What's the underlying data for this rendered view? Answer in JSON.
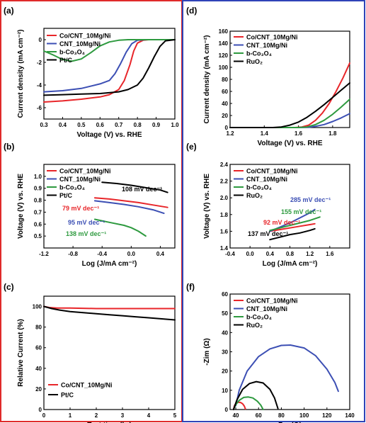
{
  "colors": {
    "red": "#e8262a",
    "blue": "#3c4fb4",
    "green": "#2e9a3f",
    "black": "#000000",
    "left_border": "#e02a2a",
    "right_border": "#2f43b8"
  },
  "chart_data": [
    {
      "id": "a",
      "label": "(a)",
      "type": "line",
      "xlabel": "Voltage (V) vs. RHE",
      "ylabel": "Current density (mA cm⁻²)",
      "xlim": [
        0.3,
        1.0
      ],
      "ylim": [
        -7,
        1
      ],
      "xticks": [
        "0.3",
        "0.4",
        "0.5",
        "0.6",
        "0.7",
        "0.8",
        "0.9",
        "1.0"
      ],
      "yticks": [
        "-6",
        "-4",
        "-2",
        "0"
      ],
      "legend": [
        "Co/CNT_10Mg/Ni",
        "CNT_10Mg/Ni",
        "b-Co₃O₄",
        "Pt/C"
      ],
      "legend_position": "top-left",
      "series": [
        {
          "name": "Co/CNT_10Mg/Ni",
          "color": "red",
          "x": [
            0.3,
            0.4,
            0.5,
            0.6,
            0.65,
            0.7,
            0.73,
            0.76,
            0.78,
            0.8,
            0.83,
            0.86,
            0.9,
            1.0
          ],
          "y": [
            -5.5,
            -5.4,
            -5.25,
            -5.05,
            -4.85,
            -4.4,
            -3.6,
            -2.2,
            -1.0,
            -0.3,
            -0.05,
            0,
            0,
            0
          ]
        },
        {
          "name": "CNT_10Mg/Ni",
          "color": "blue",
          "x": [
            0.3,
            0.4,
            0.5,
            0.6,
            0.65,
            0.68,
            0.71,
            0.74,
            0.77,
            0.8,
            0.85,
            0.9,
            1.0
          ],
          "y": [
            -4.6,
            -4.5,
            -4.3,
            -3.9,
            -3.6,
            -3.0,
            -2.1,
            -1.1,
            -0.35,
            -0.05,
            0,
            0,
            0
          ]
        },
        {
          "name": "b-Co₃O₄",
          "color": "green",
          "x": [
            0.3,
            0.35,
            0.4,
            0.45,
            0.5,
            0.55,
            0.6,
            0.65,
            0.7,
            0.75,
            0.8,
            0.9,
            1.0
          ],
          "y": [
            -1.0,
            -1.35,
            -1.75,
            -1.9,
            -1.7,
            -1.15,
            -0.55,
            -0.2,
            -0.05,
            0,
            0,
            0,
            0
          ]
        },
        {
          "name": "Pt/C",
          "color": "black",
          "x": [
            0.3,
            0.4,
            0.5,
            0.6,
            0.7,
            0.75,
            0.8,
            0.83,
            0.86,
            0.89,
            0.92,
            0.95,
            1.0
          ],
          "y": [
            -4.9,
            -4.85,
            -4.8,
            -4.75,
            -4.6,
            -4.4,
            -4.0,
            -3.4,
            -2.5,
            -1.5,
            -0.6,
            -0.1,
            0
          ]
        }
      ]
    },
    {
      "id": "b",
      "label": "(b)",
      "type": "line",
      "xlabel": "Log (J/mA cm⁻²)",
      "ylabel": "Voltage (V) vs. RHE",
      "xlim": [
        -1.2,
        0.6
      ],
      "ylim": [
        0.4,
        1.1
      ],
      "xticks": [
        "-1.2",
        "-0.8",
        "-0.4",
        "0.0",
        "0.4"
      ],
      "yticks": [
        "0.5",
        "0.6",
        "0.7",
        "0.8",
        "0.9",
        "1.0"
      ],
      "legend": [
        "Co/CNT_10Mg/Ni",
        "CNT_10Mg/Ni",
        "b-Co₃O₄",
        "Pt/C"
      ],
      "legend_position": "top-left",
      "annotations": [
        "108 mV dec⁻¹",
        "79 mV dec⁻¹",
        "95 mV dec⁻¹",
        "138 mV dec⁻¹"
      ],
      "series": [
        {
          "name": "Co/CNT_10Mg/Ni",
          "color": "red",
          "x": [
            -0.5,
            -0.3,
            -0.1,
            0.1,
            0.3,
            0.5
          ],
          "y": [
            0.82,
            0.81,
            0.795,
            0.78,
            0.76,
            0.74
          ]
        },
        {
          "name": "CNT_10Mg/Ni",
          "color": "blue",
          "x": [
            -0.5,
            -0.3,
            -0.1,
            0.1,
            0.3,
            0.45
          ],
          "y": [
            0.795,
            0.78,
            0.765,
            0.745,
            0.72,
            0.69
          ]
        },
        {
          "name": "b-Co₃O₄",
          "color": "green",
          "x": [
            -0.5,
            -0.3,
            -0.1,
            0.0,
            0.1,
            0.2
          ],
          "y": [
            0.64,
            0.615,
            0.59,
            0.57,
            0.54,
            0.5
          ]
        },
        {
          "name": "Pt/C",
          "color": "black",
          "x": [
            -0.4,
            -0.2,
            0.0,
            0.2,
            0.4,
            0.5
          ],
          "y": [
            0.95,
            0.94,
            0.925,
            0.905,
            0.885,
            0.865
          ]
        }
      ]
    },
    {
      "id": "c",
      "label": "(c)",
      "type": "line",
      "xlabel": "Test time (hr)",
      "ylabel": "Relative Current (%)",
      "xlim": [
        0,
        5
      ],
      "ylim": [
        0,
        110
      ],
      "xticks": [
        "0",
        "1",
        "2",
        "3",
        "4",
        "5"
      ],
      "yticks": [
        "0",
        "20",
        "40",
        "60",
        "80",
        "100"
      ],
      "legend": [
        "Co/CNT_10Mg/Ni",
        "Pt/C"
      ],
      "legend_position": "bottom-left",
      "series": [
        {
          "name": "Co/CNT_10Mg/Ni",
          "color": "red",
          "x": [
            0,
            0.2,
            0.5,
            1,
            2,
            3,
            4,
            5
          ],
          "y": [
            100,
            99,
            98.5,
            98.5,
            98,
            98,
            98,
            98
          ]
        },
        {
          "name": "Pt/C",
          "color": "black",
          "x": [
            0,
            0.3,
            0.6,
            1,
            1.5,
            2,
            2.5,
            3,
            3.5,
            4,
            4.5,
            5
          ],
          "y": [
            100,
            98,
            96.5,
            95,
            94,
            93,
            92,
            91,
            90,
            89,
            88,
            87
          ]
        }
      ]
    },
    {
      "id": "d",
      "label": "(d)",
      "type": "line",
      "xlabel": "Voltage (V) vs. RHE",
      "ylabel": "Current density (mA cm⁻²)",
      "xlim": [
        1.2,
        1.9
      ],
      "ylim": [
        0,
        160
      ],
      "xticks": [
        "1.2",
        "1.4",
        "1.6",
        "1.8"
      ],
      "yticks": [
        "0",
        "20",
        "40",
        "60",
        "80",
        "100",
        "120",
        "140",
        "160"
      ],
      "legend": [
        "Co/CNT_10Mg/Ni",
        "CNT_10Mg/Ni",
        "b-Co₃O₄",
        "RuO₂"
      ],
      "legend_position": "top-left",
      "series": [
        {
          "name": "Co/CNT_10Mg/Ni",
          "color": "red",
          "x": [
            1.2,
            1.5,
            1.58,
            1.62,
            1.66,
            1.7,
            1.74,
            1.78,
            1.82,
            1.86,
            1.9
          ],
          "y": [
            0,
            0,
            0,
            1,
            4,
            12,
            24,
            40,
            60,
            82,
            107
          ]
        },
        {
          "name": "CNT_10Mg/Ni",
          "color": "blue",
          "x": [
            1.2,
            1.6,
            1.66,
            1.7,
            1.75,
            1.8,
            1.85,
            1.9
          ],
          "y": [
            0,
            0,
            0.5,
            2,
            5,
            10,
            16,
            23
          ]
        },
        {
          "name": "b-Co₃O₄",
          "color": "green",
          "x": [
            1.2,
            1.6,
            1.65,
            1.7,
            1.75,
            1.8,
            1.85,
            1.9
          ],
          "y": [
            0,
            0,
            1,
            5,
            12,
            22,
            34,
            47
          ]
        },
        {
          "name": "RuO₂",
          "color": "black",
          "x": [
            1.2,
            1.45,
            1.5,
            1.55,
            1.6,
            1.65,
            1.7,
            1.75,
            1.8,
            1.85,
            1.9
          ],
          "y": [
            0,
            0,
            1,
            4,
            9,
            17,
            27,
            38,
            50,
            62,
            74
          ]
        }
      ]
    },
    {
      "id": "e",
      "label": "(e)",
      "type": "line",
      "xlabel": "Log (J/mA cm⁻²)",
      "ylabel": "Voltage (V) vs. RHE",
      "xlim": [
        -0.4,
        2.0
      ],
      "ylim": [
        1.4,
        2.4
      ],
      "xticks": [
        "-0.4",
        "0.0",
        "0.4",
        "0.8",
        "1.2",
        "1.6"
      ],
      "yticks": [
        "1.4",
        "1.6",
        "1.8",
        "2.0",
        "2.2",
        "2.4"
      ],
      "legend": [
        "Co/CNT_10Mg/Ni",
        "CNT_10Mg/Ni",
        "b-Co₃O₄",
        "RuO₂"
      ],
      "legend_position": "top-left",
      "annotations": [
        "285 mV dec⁻¹",
        "155 mV dec⁻¹",
        "92 mV dec⁻¹",
        "137 mV dec⁻¹"
      ],
      "series": [
        {
          "name": "Co/CNT_10Mg/Ni",
          "color": "red",
          "x": [
            0.4,
            0.6,
            0.8,
            1.0,
            1.2,
            1.3
          ],
          "y": [
            1.6,
            1.62,
            1.64,
            1.66,
            1.68,
            1.69
          ]
        },
        {
          "name": "CNT_10Mg/Ni",
          "color": "blue",
          "x": [
            0.4,
            0.6,
            0.8,
            1.0,
            1.2,
            1.3
          ],
          "y": [
            1.6,
            1.65,
            1.7,
            1.76,
            1.82,
            1.86
          ]
        },
        {
          "name": "b-Co₃O₄",
          "color": "green",
          "x": [
            0.4,
            0.6,
            0.8,
            1.0,
            1.2,
            1.4
          ],
          "y": [
            1.61,
            1.64,
            1.67,
            1.7,
            1.73,
            1.77
          ]
        },
        {
          "name": "RuO₂",
          "color": "black",
          "x": [
            0.4,
            0.6,
            0.8,
            1.0,
            1.2,
            1.3
          ],
          "y": [
            1.5,
            1.53,
            1.56,
            1.58,
            1.61,
            1.63
          ]
        }
      ]
    },
    {
      "id": "f",
      "label": "(f)",
      "type": "line",
      "xlabel": "Zre (Ω)",
      "ylabel": "-Zim (Ω)",
      "xlim": [
        35,
        140
      ],
      "ylim": [
        0,
        60
      ],
      "xticks": [
        "40",
        "60",
        "80",
        "100",
        "120",
        "140"
      ],
      "yticks": [
        "0",
        "10",
        "20",
        "30",
        "40",
        "50",
        "60"
      ],
      "legend": [
        "Co/CNT_10Mg/Ni",
        "CNT_10Mg/Ni",
        "b-Co₃O₄",
        "RuO₂"
      ],
      "legend_position": "top-left",
      "series": [
        {
          "name": "Co/CNT_10Mg/Ni",
          "color": "red",
          "x": [
            38,
            39,
            40.5,
            42,
            44,
            46,
            47.5,
            48.5
          ],
          "y": [
            0,
            2.2,
            3.3,
            3.8,
            3.7,
            3.0,
            1.8,
            0.3
          ]
        },
        {
          "name": "CNT_10Mg/Ni",
          "color": "blue",
          "x": [
            40,
            43,
            50,
            60,
            70,
            80,
            88,
            100,
            110,
            120,
            127,
            130
          ],
          "y": [
            2,
            10,
            20,
            27.5,
            31.5,
            33.3,
            33.5,
            32,
            28,
            21,
            14,
            9.5
          ]
        },
        {
          "name": "b-Co₃O₄",
          "color": "green",
          "x": [
            38,
            40,
            43,
            47,
            51,
            55,
            59,
            62,
            64
          ],
          "y": [
            0,
            2.5,
            4.8,
            6.3,
            6.5,
            6.0,
            4.3,
            2.2,
            0
          ]
        },
        {
          "name": "RuO₂",
          "color": "black",
          "x": [
            38,
            41,
            46,
            52,
            58,
            64,
            70,
            74,
            77
          ],
          "y": [
            0,
            5,
            10.5,
            13.5,
            14.5,
            13.8,
            10.5,
            6,
            0.5
          ]
        }
      ]
    }
  ]
}
